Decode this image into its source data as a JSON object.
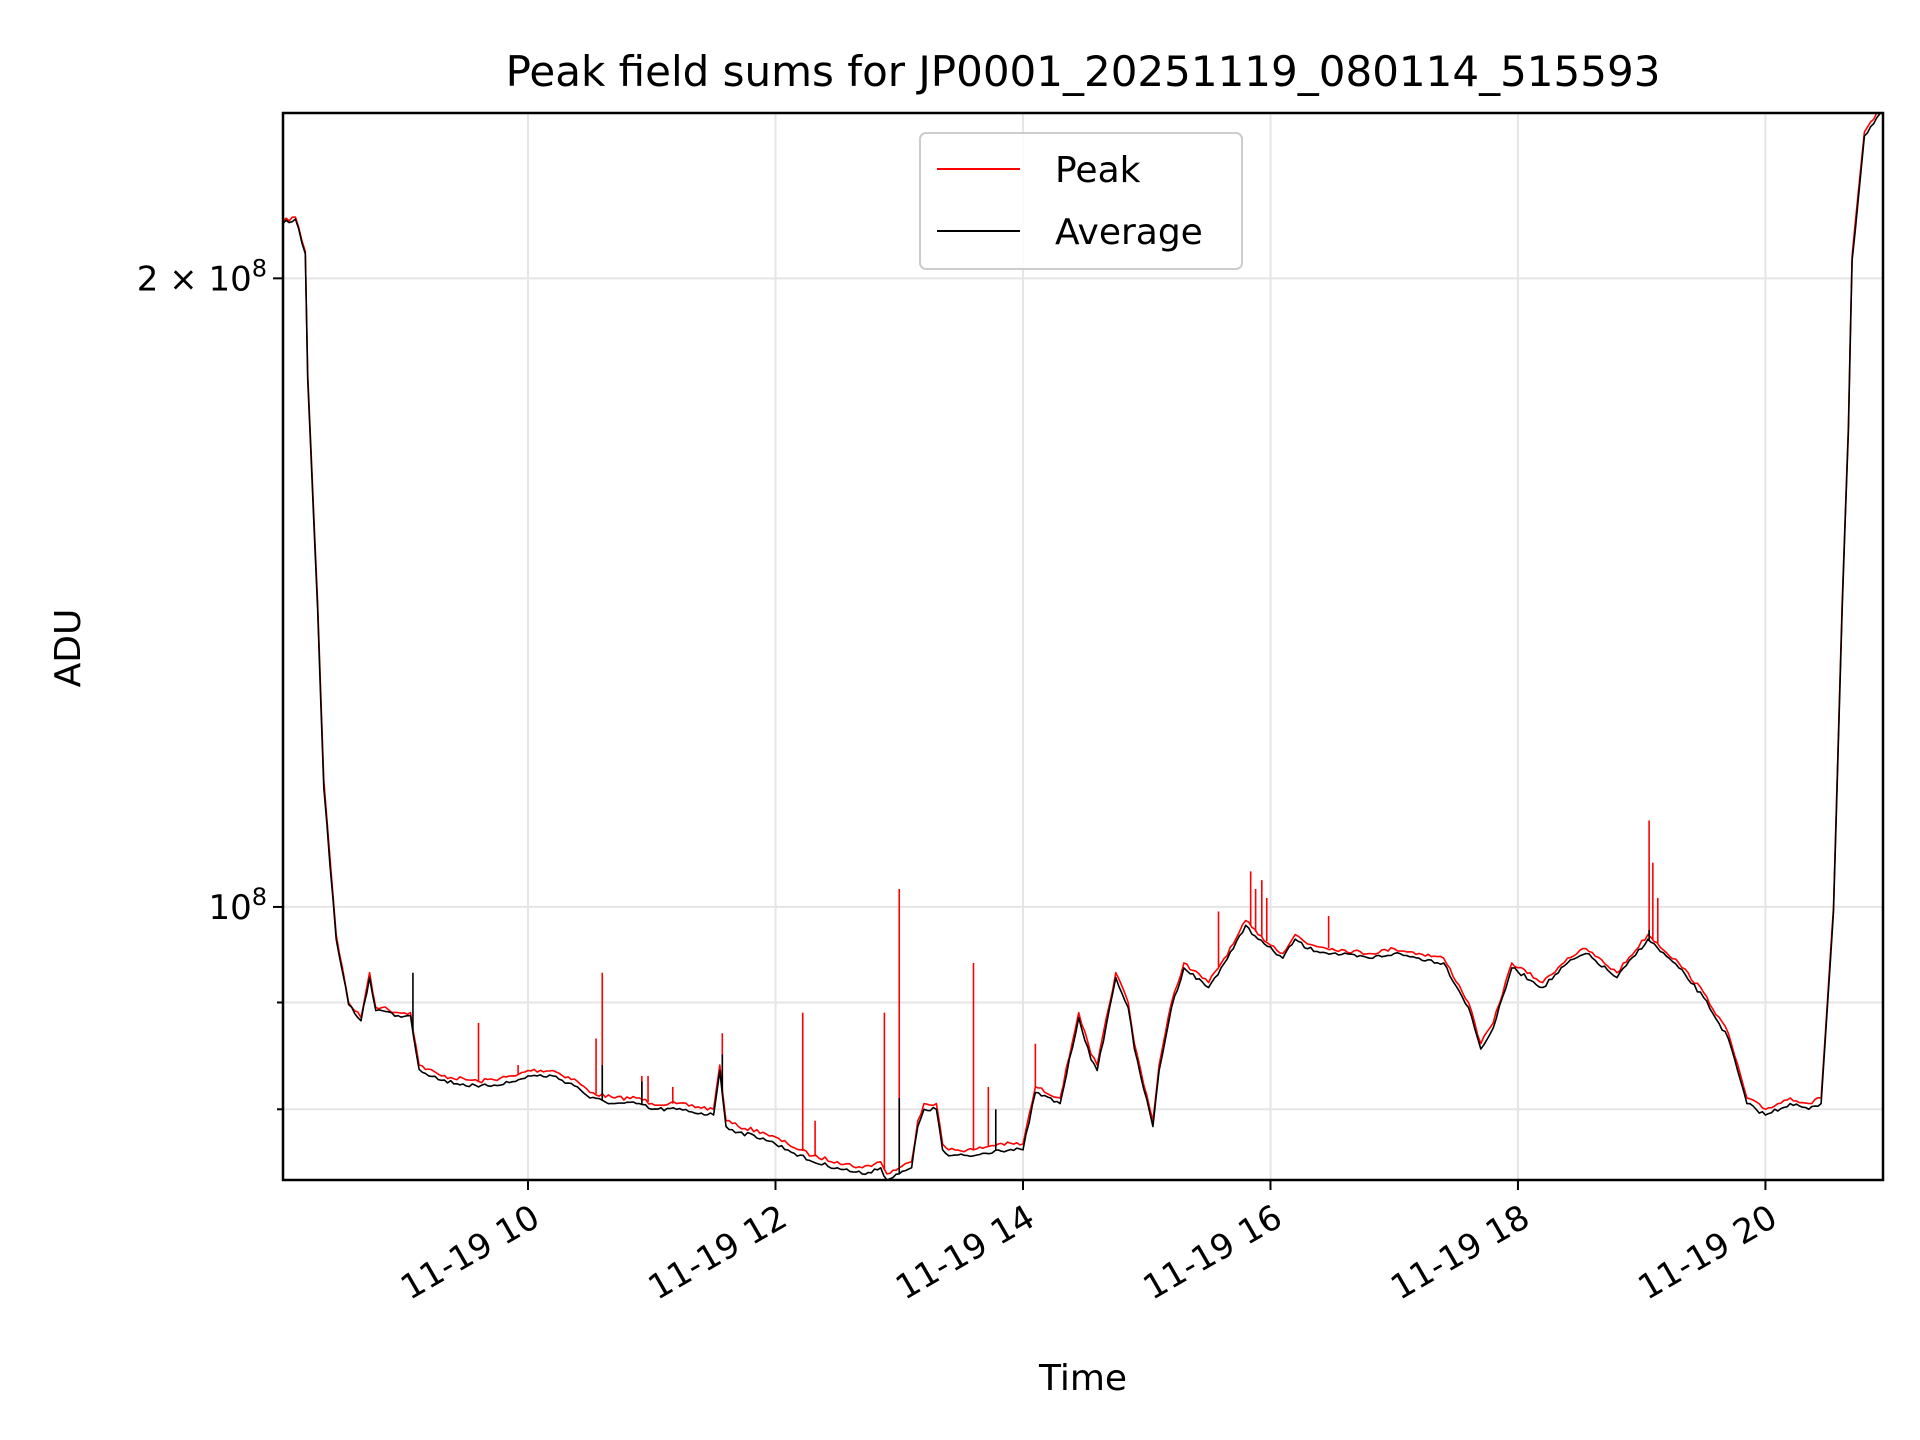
{
  "chart_data": {
    "type": "line",
    "title": "Peak field sums for JP0001_20251119_080114_515593",
    "xlabel": "Time",
    "ylabel": "ADU",
    "yscale": "log",
    "grid": true,
    "legend_position": "top-center",
    "xlim_hours": [
      8.02,
      20.95
    ],
    "ylim": [
      74000000,
      240000000
    ],
    "x_ticks": [
      {
        "value": 10,
        "label": "11-19 10"
      },
      {
        "value": 12,
        "label": "11-19 12"
      },
      {
        "value": 14,
        "label": "11-19 14"
      },
      {
        "value": 16,
        "label": "11-19 16"
      },
      {
        "value": 18,
        "label": "11-19 18"
      },
      {
        "value": 20,
        "label": "11-19 20"
      }
    ],
    "y_major_ticks": [
      {
        "value": 100000000,
        "base": "10",
        "exp": "8",
        "coef": ""
      },
      {
        "value": 200000000,
        "base": "10",
        "exp": "8",
        "coef": "2 × "
      }
    ],
    "y_minor_ticks": [
      80000000,
      90000000
    ],
    "series": [
      {
        "name": "Peak",
        "color": "#ff0000",
        "x": [
          8.02,
          8.12,
          8.2,
          8.22,
          8.3,
          8.35,
          8.45,
          8.55,
          8.65,
          8.72,
          8.77,
          8.82,
          8.95,
          9.05,
          9.12,
          9.3,
          9.6,
          9.9,
          10.0,
          10.2,
          10.4,
          10.5,
          10.7,
          10.9,
          11.0,
          11.2,
          11.5,
          11.55,
          11.6,
          11.7,
          11.9,
          12.1,
          12.3,
          12.5,
          12.7,
          12.85,
          12.9,
          13.0,
          13.1,
          13.15,
          13.2,
          13.3,
          13.35,
          13.4,
          13.6,
          13.8,
          14.0,
          14.1,
          14.3,
          14.45,
          14.55,
          14.6,
          14.75,
          14.85,
          14.9,
          15.05,
          15.1,
          15.2,
          15.3,
          15.5,
          15.7,
          15.8,
          15.9,
          16.1,
          16.2,
          16.3,
          16.5,
          16.8,
          17.0,
          17.2,
          17.4,
          17.6,
          17.7,
          17.8,
          17.95,
          18.2,
          18.4,
          18.55,
          18.8,
          19.05,
          19.3,
          19.5,
          19.7,
          19.85,
          20.0,
          20.2,
          20.35,
          20.45,
          20.55,
          20.62,
          20.67,
          20.7,
          20.8,
          20.95
        ],
        "y": [
          213000000,
          214000000,
          206000000,
          180000000,
          140000000,
          115000000,
          97000000,
          90000000,
          88500000,
          93000000,
          89500000,
          89500000,
          89000000,
          89000000,
          84000000,
          83000000,
          82500000,
          83000000,
          83500000,
          83500000,
          82500000,
          81500000,
          81000000,
          81000000,
          80500000,
          80500000,
          80000000,
          84000000,
          79000000,
          78500000,
          78000000,
          77000000,
          76000000,
          75500000,
          75000000,
          75500000,
          74500000,
          75000000,
          75500000,
          79000000,
          80500000,
          80500000,
          77000000,
          76500000,
          76500000,
          77000000,
          77000000,
          82000000,
          81000000,
          89000000,
          85000000,
          84000000,
          93000000,
          90000000,
          86000000,
          79000000,
          84000000,
          90000000,
          94000000,
          92000000,
          96000000,
          98500000,
          97000000,
          95000000,
          97000000,
          96000000,
          95500000,
          95000000,
          95500000,
          95000000,
          94500000,
          90000000,
          86000000,
          88000000,
          94000000,
          92000000,
          94500000,
          95500000,
          93000000,
          97000000,
          94000000,
          91000000,
          87000000,
          81000000,
          80000000,
          81000000,
          80500000,
          81000000,
          100000000,
          140000000,
          170000000,
          205000000,
          235000000,
          242000000
        ],
        "spikes": [
          {
            "x": 9.6,
            "y": 88000000
          },
          {
            "x": 9.92,
            "y": 84000000
          },
          {
            "x": 10.55,
            "y": 86500000
          },
          {
            "x": 10.6,
            "y": 93000000
          },
          {
            "x": 10.92,
            "y": 83000000
          },
          {
            "x": 10.97,
            "y": 83000000
          },
          {
            "x": 11.17,
            "y": 82000000
          },
          {
            "x": 11.57,
            "y": 87000000
          },
          {
            "x": 12.22,
            "y": 89000000
          },
          {
            "x": 12.32,
            "y": 79000000
          },
          {
            "x": 12.88,
            "y": 89000000
          },
          {
            "x": 13.0,
            "y": 102000000
          },
          {
            "x": 13.6,
            "y": 94000000
          },
          {
            "x": 13.72,
            "y": 82000000
          },
          {
            "x": 14.1,
            "y": 86000000
          },
          {
            "x": 15.58,
            "y": 99500000
          },
          {
            "x": 15.84,
            "y": 104000000
          },
          {
            "x": 15.88,
            "y": 102000000
          },
          {
            "x": 15.93,
            "y": 103000000
          },
          {
            "x": 15.97,
            "y": 101000000
          },
          {
            "x": 16.47,
            "y": 99000000
          },
          {
            "x": 19.06,
            "y": 110000000
          },
          {
            "x": 19.09,
            "y": 105000000
          },
          {
            "x": 19.13,
            "y": 101000000
          }
        ]
      },
      {
        "name": "Average",
        "color": "#000000",
        "x": [
          8.02,
          8.12,
          8.2,
          8.22,
          8.3,
          8.35,
          8.45,
          8.55,
          8.65,
          8.72,
          8.77,
          8.82,
          8.95,
          9.05,
          9.12,
          9.3,
          9.6,
          9.9,
          10.0,
          10.2,
          10.4,
          10.5,
          10.7,
          10.9,
          11.0,
          11.2,
          11.5,
          11.55,
          11.6,
          11.7,
          11.9,
          12.1,
          12.3,
          12.5,
          12.7,
          12.85,
          12.9,
          13.0,
          13.1,
          13.15,
          13.2,
          13.3,
          13.35,
          13.4,
          13.6,
          13.8,
          14.0,
          14.1,
          14.3,
          14.45,
          14.55,
          14.6,
          14.75,
          14.85,
          14.9,
          15.05,
          15.1,
          15.2,
          15.3,
          15.5,
          15.7,
          15.8,
          15.9,
          16.1,
          16.2,
          16.3,
          16.5,
          16.8,
          17.0,
          17.2,
          17.4,
          17.6,
          17.7,
          17.8,
          17.95,
          18.2,
          18.4,
          18.55,
          18.8,
          19.05,
          19.3,
          19.5,
          19.7,
          19.85,
          20.0,
          20.2,
          20.35,
          20.45,
          20.55,
          20.62,
          20.67,
          20.7,
          20.8,
          20.95
        ],
        "y": [
          212500000,
          213500000,
          205500000,
          179000000,
          139000000,
          114000000,
          96500000,
          89800000,
          88200000,
          92500000,
          89200000,
          89200000,
          88700000,
          88700000,
          83600000,
          82600000,
          82000000,
          82500000,
          83000000,
          83000000,
          82000000,
          81000000,
          80500000,
          80500000,
          80000000,
          80000000,
          79500000,
          83500000,
          78500000,
          78000000,
          77500000,
          76500000,
          75500000,
          75000000,
          74500000,
          75000000,
          74000000,
          74500000,
          75000000,
          78500000,
          80000000,
          80000000,
          76500000,
          76000000,
          76000000,
          76500000,
          76500000,
          81500000,
          80500000,
          88500000,
          84500000,
          83500000,
          92500000,
          89500000,
          85500000,
          78500000,
          83500000,
          89500000,
          93500000,
          91500000,
          95500000,
          98000000,
          96500000,
          94500000,
          96500000,
          95500000,
          95000000,
          94500000,
          95000000,
          94500000,
          94000000,
          89500000,
          85500000,
          87500000,
          93500000,
          91500000,
          94000000,
          95000000,
          92500000,
          96500000,
          93500000,
          90500000,
          86500000,
          80500000,
          79500000,
          80500000,
          80000000,
          80500000,
          99500000,
          139000000,
          169000000,
          204000000,
          234000000,
          241000000
        ],
        "spikes": [
          {
            "x": 9.07,
            "y": 93000000
          },
          {
            "x": 10.6,
            "y": 84000000
          },
          {
            "x": 10.92,
            "y": 82500000
          },
          {
            "x": 11.57,
            "y": 85000000
          },
          {
            "x": 13.0,
            "y": 81000000
          },
          {
            "x": 13.78,
            "y": 80000000
          },
          {
            "x": 19.06,
            "y": 97500000
          }
        ]
      }
    ]
  }
}
